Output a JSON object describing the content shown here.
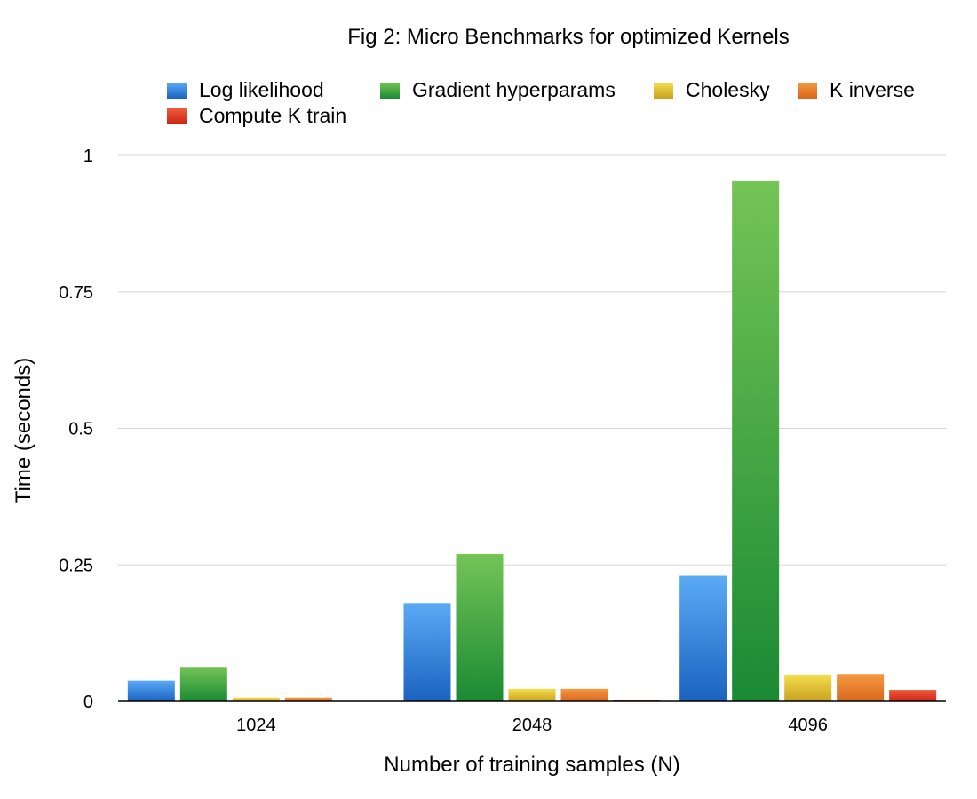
{
  "chart_data": {
    "type": "bar",
    "title": "Fig 2: Micro Benchmarks for optimized Kernels",
    "xlabel": "Number of training samples (N)",
    "ylabel": "Time (seconds)",
    "categories": [
      "1024",
      "2048",
      "4096"
    ],
    "ylim": [
      0,
      1
    ],
    "yticks": [
      "0",
      "0.25",
      "0.5",
      "0.75",
      "1"
    ],
    "grid": true,
    "legend_position": "top",
    "series": [
      {
        "name": "Log likelihood",
        "values": [
          0.038,
          0.18,
          0.23
        ],
        "color_top": "#5aaaf5",
        "color_bottom": "#1a63c0"
      },
      {
        "name": "Gradient hyperparams",
        "values": [
          0.063,
          0.27,
          0.953
        ],
        "color_top": "#74c456",
        "color_bottom": "#1a8a34"
      },
      {
        "name": "Cholesky",
        "values": [
          0.007,
          0.023,
          0.049
        ],
        "color_top": "#f5de4e",
        "color_bottom": "#c9a11f"
      },
      {
        "name": "K inverse",
        "values": [
          0.007,
          0.023,
          0.05
        ],
        "color_top": "#f49a40",
        "color_bottom": "#d9651d"
      },
      {
        "name": "Compute K train",
        "values": [
          0.0,
          0.003,
          0.021
        ],
        "color_top": "#f05a3a",
        "color_bottom": "#cc2518"
      }
    ]
  }
}
